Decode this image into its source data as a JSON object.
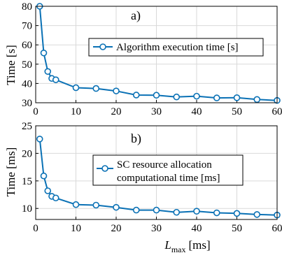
{
  "colors": {
    "series": "#0a71b5",
    "grid": "#d9d9d9",
    "frame": "#000000"
  },
  "chart_data": [
    {
      "type": "line",
      "panel_label": "a)",
      "ylabel": "Time [s]",
      "xlim": [
        0,
        60
      ],
      "ylim": [
        30,
        80
      ],
      "xticks": [
        0,
        10,
        20,
        30,
        40,
        50,
        60
      ],
      "yticks": [
        30,
        40,
        50,
        60,
        70,
        80
      ],
      "grid": true,
      "legend_position": "right",
      "series": [
        {
          "name": "Algorithm execution time [s]",
          "x": [
            1,
            2,
            3,
            4,
            5,
            10,
            15,
            20,
            25,
            30,
            35,
            40,
            45,
            50,
            55,
            60
          ],
          "y": [
            80,
            55.8,
            46.2,
            42.6,
            41.9,
            37.8,
            37.4,
            36.1,
            34.0,
            33.9,
            33.0,
            33.4,
            32.5,
            32.6,
            31.7,
            31.2
          ]
        }
      ]
    },
    {
      "type": "line",
      "panel_label": "b)",
      "xlabel": "L",
      "xlabel_sub": "max",
      "xlabel_unit": "[ms]",
      "ylabel": "Time [ms]",
      "xlim": [
        0,
        60
      ],
      "ylim": [
        8,
        25
      ],
      "xticks": [
        0,
        10,
        20,
        30,
        40,
        50,
        60
      ],
      "yticks": [
        10,
        15,
        20,
        25
      ],
      "grid": true,
      "legend_position": "top-right",
      "series": [
        {
          "name": "SC resource allocation computational time [ms]",
          "name_lines": [
            "SC resource allocation",
            "computational time [ms]"
          ],
          "x": [
            1,
            2,
            3,
            4,
            5,
            10,
            15,
            20,
            25,
            30,
            35,
            40,
            45,
            50,
            55,
            60
          ],
          "y": [
            22.6,
            15.9,
            13.2,
            12.2,
            11.9,
            10.7,
            10.6,
            10.2,
            9.7,
            9.7,
            9.3,
            9.5,
            9.2,
            9.1,
            8.9,
            8.8
          ]
        }
      ]
    }
  ]
}
